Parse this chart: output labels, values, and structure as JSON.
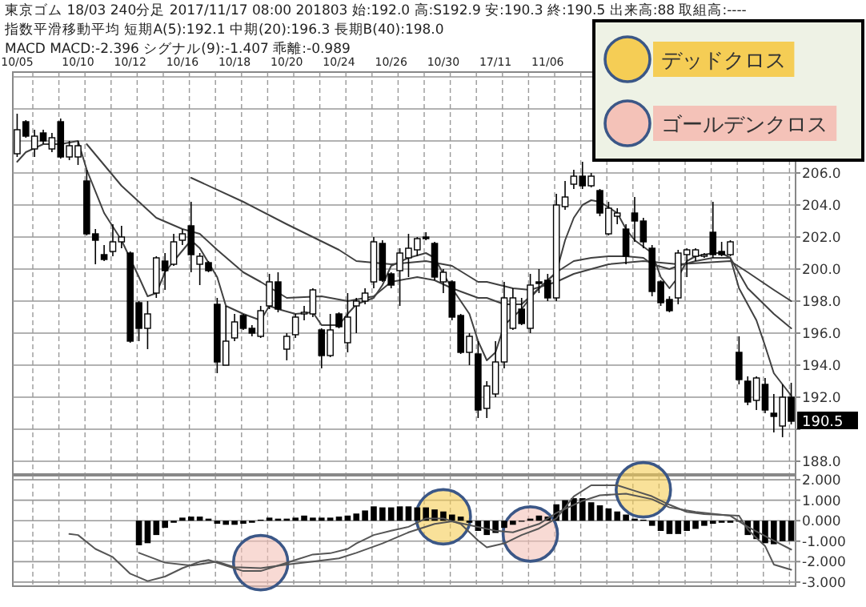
{
  "chart_data": [
    {
      "type": "candlestick",
      "title": "東京ゴム 18/03 240分足 2017/11/17 08:00 201803 始:192.0 高:S192.9 安:190.3 終:190.5 出来高:88 取組高:----",
      "subtitle": "指数平滑移動平均 短期A(5):192.1 中期(20):196.3 長期B(40):198.0",
      "categories": [
        "10/05",
        null,
        null,
        null,
        null,
        null,
        null,
        "10/10",
        null,
        null,
        null,
        null,
        null,
        "10/12",
        null,
        null,
        null,
        null,
        null,
        "10/16",
        null,
        null,
        null,
        null,
        null,
        "10/18",
        null,
        null,
        null,
        null,
        null,
        "10/20",
        null,
        null,
        null,
        null,
        null,
        "10/24",
        null,
        null,
        null,
        null,
        null,
        "10/26",
        null,
        null,
        null,
        null,
        null,
        "10/30",
        null,
        null,
        null,
        null,
        null,
        "17/11",
        null,
        null,
        null,
        null,
        null,
        "11/06",
        null,
        null,
        null,
        null,
        null,
        null,
        null,
        null,
        null,
        null,
        null,
        null,
        null,
        null,
        null,
        null,
        null,
        null,
        null,
        null,
        null,
        null,
        null,
        null,
        null,
        null,
        null,
        null
      ],
      "ohlc": [
        [
          207.2,
          209.7,
          207.0,
          208.7
        ],
        [
          209.2,
          209.3,
          208.2,
          208.3
        ],
        [
          207.5,
          208.7,
          207.0,
          208.3
        ],
        [
          208.5,
          208.7,
          207.8,
          208.0
        ],
        [
          207.5,
          208.5,
          207.3,
          208.2
        ],
        [
          209.2,
          209.4,
          206.9,
          207.0
        ],
        [
          207.0,
          208.0,
          206.8,
          207.7
        ],
        [
          207.0,
          208.0,
          206.5,
          207.7
        ],
        [
          205.5,
          206.2,
          202.1,
          202.2
        ],
        [
          202.2,
          202.5,
          200.3,
          201.8
        ],
        [
          200.9,
          201.5,
          200.5,
          200.6
        ],
        [
          201.1,
          202.8,
          200.8,
          201.7
        ],
        [
          201.7,
          202.7,
          201.3,
          202.0
        ],
        [
          201.0,
          201.1,
          195.4,
          195.5
        ],
        [
          197.9,
          198.0,
          195.5,
          196.3
        ],
        [
          196.3,
          198.0,
          195.0,
          197.2
        ],
        [
          198.5,
          200.8,
          198.2,
          200.7
        ],
        [
          200.5,
          201.0,
          198.7,
          199.9
        ],
        [
          200.3,
          202.2,
          200.2,
          201.7
        ],
        [
          201.8,
          202.5,
          201.5,
          202.2
        ],
        [
          202.7,
          204.2,
          199.8,
          200.9
        ],
        [
          200.3,
          201.0,
          199.0,
          200.8
        ],
        [
          200.4,
          200.5,
          199.8,
          199.9
        ],
        [
          197.8,
          198.2,
          193.5,
          194.2
        ],
        [
          194.0,
          197.7,
          194.0,
          195.5
        ],
        [
          195.7,
          197.2,
          195.5,
          196.7
        ],
        [
          197.1,
          197.2,
          196.2,
          196.3
        ],
        [
          196.3,
          196.5,
          195.8,
          196.0
        ],
        [
          195.8,
          197.7,
          195.7,
          197.4
        ],
        [
          197.7,
          199.7,
          197.5,
          199.2
        ],
        [
          199.2,
          199.8,
          197.3,
          197.5
        ],
        [
          195.0,
          196.0,
          194.3,
          195.8
        ],
        [
          195.9,
          197.2,
          195.7,
          197.0
        ],
        [
          197.2,
          197.7,
          196.8,
          197.3
        ],
        [
          197.2,
          198.8,
          197.0,
          198.7
        ],
        [
          196.2,
          196.3,
          193.8,
          194.6
        ],
        [
          194.6,
          197.2,
          194.5,
          196.2
        ],
        [
          197.2,
          197.3,
          196.3,
          196.4
        ],
        [
          195.4,
          198.5,
          194.8,
          197.0
        ],
        [
          197.7,
          198.2,
          196.0,
          198.0
        ],
        [
          198.0,
          198.8,
          197.8,
          198.5
        ],
        [
          199.2,
          202.0,
          198.8,
          201.7
        ],
        [
          201.6,
          201.8,
          199.2,
          199.3
        ],
        [
          199.7,
          199.8,
          198.8,
          199.0
        ],
        [
          199.9,
          201.3,
          197.7,
          201.0
        ],
        [
          200.7,
          202.2,
          199.5,
          201.3
        ],
        [
          201.2,
          202.0,
          200.8,
          201.9
        ],
        [
          202.0,
          202.3,
          201.8,
          201.9
        ],
        [
          201.6,
          201.7,
          199.3,
          199.5
        ],
        [
          199.2,
          200.0,
          198.5,
          199.8
        ],
        [
          199.2,
          199.3,
          196.8,
          197.0
        ],
        [
          197.1,
          197.2,
          194.7,
          194.8
        ],
        [
          194.8,
          196.0,
          194.0,
          195.8
        ],
        [
          194.7,
          195.5,
          190.7,
          191.2
        ],
        [
          191.3,
          193.0,
          190.7,
          192.7
        ],
        [
          192.2,
          195.5,
          192.0,
          194.2
        ],
        [
          194.2,
          199.2,
          193.8,
          198.2
        ],
        [
          196.3,
          198.8,
          196.2,
          198.2
        ],
        [
          197.5,
          198.2,
          196.5,
          196.6
        ],
        [
          196.3,
          199.7,
          196.0,
          199.0
        ],
        [
          199.2,
          200.0,
          198.5,
          199.1
        ],
        [
          199.3,
          199.7,
          198.0,
          198.2
        ],
        [
          198.2,
          204.7,
          198.0,
          204.0
        ],
        [
          203.9,
          205.5,
          203.7,
          204.5
        ],
        [
          205.3,
          206.2,
          205.0,
          205.8
        ],
        [
          205.8,
          206.7,
          205.0,
          205.2
        ],
        [
          205.2,
          206.0,
          205.1,
          205.8
        ],
        [
          204.9,
          205.0,
          203.3,
          203.5
        ],
        [
          202.2,
          204.2,
          202.1,
          203.8
        ],
        [
          203.3,
          203.8,
          202.8,
          203.5
        ],
        [
          202.5,
          202.8,
          200.3,
          200.8
        ],
        [
          203.5,
          204.5,
          201.7,
          203.0
        ],
        [
          203.0,
          203.2,
          201.3,
          201.7
        ],
        [
          201.3,
          201.5,
          198.3,
          198.6
        ],
        [
          199.2,
          199.3,
          197.7,
          197.9
        ],
        [
          198.1,
          198.3,
          197.3,
          197.4
        ],
        [
          198.2,
          201.2,
          197.8,
          201.0
        ],
        [
          200.9,
          201.3,
          199.5,
          201.2
        ],
        [
          200.8,
          201.3,
          200.5,
          201.2
        ],
        [
          200.8,
          201.0,
          200.7,
          200.9
        ],
        [
          202.3,
          204.2,
          200.7,
          200.9
        ],
        [
          201.1,
          201.7,
          200.8,
          200.9
        ],
        [
          200.9,
          201.8,
          200.8,
          201.7
        ],
        [
          194.8,
          195.8,
          192.8,
          193.1
        ],
        [
          193.0,
          193.3,
          191.5,
          191.7
        ],
        [
          191.8,
          193.3,
          191.2,
          193.2
        ],
        [
          192.8,
          193.2,
          191.0,
          191.2
        ],
        [
          191.0,
          192.2,
          189.8,
          190.8
        ],
        [
          190.2,
          192.8,
          189.5,
          192.0
        ],
        [
          192.0,
          192.9,
          190.3,
          190.5
        ]
      ],
      "series": [
        {
          "type": "line",
          "color": "#404040",
          "values": [
            206.7,
            207.3,
            null,
            207.8,
            null,
            207.8,
            null,
            208.0,
            206.2,
            null,
            203.5,
            null,
            201.8,
            null,
            199.5,
            198.3,
            198.5,
            199.8,
            200.5,
            null,
            201.8,
            201.3,
            null,
            199.5,
            197.7,
            null,
            197.2,
            null,
            196.8,
            197.7,
            197.5,
            null,
            197.2,
            null,
            197.3,
            196.5,
            null,
            196.5,
            197.2,
            197.8,
            null,
            198.2,
            199.0,
            200.2,
            null,
            200.7,
            null,
            201.0,
            200.7,
            199.7,
            198.8,
            null,
            197.2,
            195.5,
            194.3,
            194.8,
            196.5,
            null,
            197.5,
            198.2,
            198.8,
            null,
            199.8,
            201.8,
            203.2,
            204.0,
            204.3,
            204.2,
            null,
            203.5,
            202.5,
            201.8,
            null,
            201.0,
            199.5,
            198.8,
            199.5,
            200.5,
            200.8,
            null,
            201.0,
            201.0,
            200.7,
            198.8,
            null,
            196.8,
            195.2,
            193.5,
            null,
            192.1
          ]
        },
        {
          "type": "line",
          "color": "#404040",
          "values": [
            null,
            null,
            null,
            null,
            null,
            null,
            null,
            null,
            207.8,
            null,
            null,
            null,
            205.2,
            null,
            null,
            null,
            203.2,
            null,
            null,
            202.5,
            null,
            202.2,
            null,
            201.2,
            null,
            null,
            199.8,
            null,
            199.2,
            null,
            null,
            198.2,
            null,
            null,
            null,
            198.3,
            null,
            null,
            198.0,
            null,
            null,
            198.3,
            null,
            199.2,
            null,
            null,
            199.5,
            null,
            199.3,
            null,
            198.8,
            null,
            null,
            198.2,
            198.2,
            null,
            197.8,
            null,
            197.8,
            null,
            198.8,
            null,
            199.8,
            null,
            200.5,
            null,
            200.7,
            null,
            200.8,
            null,
            200.8,
            null,
            200.7,
            200.3,
            null,
            200.0,
            200.2,
            null,
            200.5,
            null,
            200.7,
            null,
            200.7,
            null,
            198.8,
            null,
            null,
            197.2,
            null,
            196.3
          ]
        },
        {
          "type": "line",
          "color": "#404040",
          "values": [
            null,
            null,
            null,
            null,
            null,
            null,
            null,
            null,
            null,
            null,
            null,
            null,
            null,
            null,
            null,
            null,
            null,
            null,
            null,
            null,
            205.7,
            null,
            null,
            null,
            null,
            null,
            204.2,
            null,
            null,
            null,
            null,
            202.8,
            null,
            null,
            null,
            null,
            null,
            201.2,
            null,
            200.5,
            null,
            null,
            null,
            200.3,
            null,
            null,
            null,
            200.5,
            null,
            null,
            200.2,
            null,
            null,
            199.2,
            199.2,
            null,
            null,
            198.8,
            null,
            198.7,
            null,
            null,
            199.2,
            null,
            199.7,
            null,
            200.0,
            null,
            200.3,
            null,
            null,
            null,
            200.5,
            null,
            null,
            null,
            200.3,
            null,
            null,
            null,
            null,
            null,
            200.5,
            null,
            199.8,
            null,
            null,
            198.7,
            null,
            198.0
          ]
        }
      ],
      "ylim": [
        187.2,
        212.3
      ],
      "yticks": [
        {
          "value": 188,
          "label": "188.0"
        },
        {
          "value": 190,
          "label": null
        },
        {
          "value": 192,
          "label": "192.0"
        },
        {
          "value": 194,
          "label": "194.0"
        },
        {
          "value": 196,
          "label": "196.0"
        },
        {
          "value": 198,
          "label": "198.0"
        },
        {
          "value": 200,
          "label": "200.0"
        },
        {
          "value": 202,
          "label": "202.0"
        },
        {
          "value": 204,
          "label": "204.0"
        },
        {
          "value": 206,
          "label": "206.0"
        },
        {
          "value": 208,
          "label": null
        },
        {
          "value": 210,
          "label": null
        },
        {
          "value": 212,
          "label": null
        }
      ],
      "grid": true,
      "annotations": [
        "MACD MACD:-2.396 シグナル(9):-1.407 乖離:-0.989",
        "190.5"
      ]
    },
    {
      "type": "bar",
      "categories": [
        null,
        null,
        null,
        null,
        null,
        null,
        null,
        null,
        null,
        null,
        null,
        null,
        null,
        null,
        null,
        null,
        null,
        null,
        null,
        null,
        null,
        null,
        null,
        null,
        null,
        null,
        null,
        null,
        null,
        null,
        null,
        null,
        null,
        null,
        null,
        null,
        null,
        null,
        null,
        null,
        null,
        null,
        null,
        null,
        null,
        null,
        null,
        null,
        null,
        null,
        null,
        null,
        null,
        null,
        null,
        null,
        null,
        null,
        null,
        null,
        null,
        null,
        null,
        null,
        null,
        null,
        null,
        null,
        null,
        null,
        null,
        null,
        null,
        null,
        null,
        null,
        null,
        null,
        null,
        null,
        null,
        null,
        null,
        null,
        null,
        null,
        null,
        null,
        null,
        null
      ],
      "series": [
        {
          "type": "bar",
          "color": "#000000",
          "values": [
            null,
            null,
            null,
            null,
            null,
            null,
            null,
            null,
            null,
            null,
            null,
            null,
            null,
            null,
            -1.2,
            -1.1,
            -0.7,
            -0.35,
            -0.1,
            0.15,
            0.2,
            0.2,
            0.1,
            -0.15,
            -0.2,
            -0.2,
            -0.15,
            -0.1,
            0.05,
            0.15,
            0.1,
            0.1,
            0.15,
            0.25,
            0.15,
            0.15,
            0.15,
            0.2,
            0.25,
            0.35,
            0.5,
            0.7,
            0.65,
            0.65,
            0.7,
            0.7,
            0.65,
            0.65,
            0.55,
            0.45,
            0.3,
            0.2,
            -0.1,
            -0.5,
            -0.7,
            -0.6,
            -0.35,
            -0.2,
            -0.05,
            0.1,
            0.25,
            0.2,
            0.8,
            1.0,
            1.1,
            1.1,
            0.9,
            0.75,
            0.6,
            0.45,
            0.3,
            0.1,
            0.05,
            -0.25,
            -0.5,
            -0.65,
            -0.65,
            -0.5,
            -0.4,
            -0.25,
            -0.15,
            -0.1,
            -0.1,
            -0.05,
            -0.7,
            -0.9,
            -1.1,
            -1.15,
            -1.0,
            -0.99
          ]
        },
        {
          "type": "line",
          "color": "#555555",
          "values": [
            null,
            null,
            null,
            null,
            null,
            null,
            -0.65,
            -0.7,
            null,
            -1.38,
            null,
            -1.78,
            null,
            -2.59,
            null,
            -2.95,
            null,
            -2.73,
            null,
            -2.32,
            null,
            -2.0,
            -1.92,
            null,
            -2.19,
            null,
            -2.46,
            null,
            -2.46,
            null,
            -2.19,
            null,
            -1.92,
            null,
            -1.65,
            null,
            -1.59,
            null,
            -1.38,
            -1.11,
            null,
            -0.7,
            null,
            -0.49,
            null,
            -0.3,
            null,
            0.11,
            null,
            0.11,
            null,
            -0.16,
            null,
            -0.97,
            -1.3,
            null,
            -1.11,
            null,
            -0.7,
            null,
            -0.38,
            null,
            0.11,
            null,
            1.19,
            null,
            1.73,
            null,
            null,
            1.73,
            null,
            1.46,
            null,
            1.19,
            null,
            0.78,
            null,
            0.43,
            null,
            0.32,
            null,
            null,
            null,
            0.24,
            -0.43,
            null,
            -1.24,
            -2.14,
            null,
            -2.4
          ]
        },
        {
          "type": "line",
          "color": "#555555",
          "values": [
            null,
            null,
            null,
            null,
            null,
            null,
            null,
            null,
            null,
            null,
            null,
            null,
            null,
            null,
            -1.57,
            null,
            null,
            -2.05,
            null,
            null,
            -2.19,
            null,
            null,
            -2.0,
            null,
            -2.27,
            null,
            null,
            -2.32,
            null,
            null,
            -2.14,
            null,
            null,
            -2.0,
            null,
            null,
            -1.84,
            null,
            -1.57,
            null,
            null,
            -1.11,
            null,
            null,
            -0.57,
            null,
            null,
            -0.16,
            null,
            -0.03,
            null,
            -0.22,
            null,
            null,
            -0.49,
            null,
            -0.57,
            null,
            null,
            -0.16,
            null,
            0.38,
            null,
            null,
            0.97,
            null,
            1.24,
            null,
            null,
            1.32,
            null,
            null,
            1.05,
            null,
            0.65,
            null,
            null,
            0.43,
            null,
            null,
            null,
            0.24,
            null,
            -0.3,
            null,
            null,
            -0.97,
            null,
            -1.41
          ]
        },
        {
          "type": "bubble",
          "name": "デッドクロス",
          "color": "#f5cd55",
          "values": [
            null,
            null,
            null,
            null,
            null,
            null,
            null,
            null,
            null,
            null,
            null,
            null,
            null,
            null,
            null,
            null,
            null,
            null,
            null,
            null,
            null,
            null,
            null,
            null,
            null,
            null,
            null,
            null,
            null,
            null,
            null,
            null,
            null,
            null,
            null,
            null,
            null,
            null,
            null,
            null,
            null,
            null,
            null,
            null,
            null,
            null,
            null,
            null,
            null,
            0.19,
            null,
            null,
            null,
            null,
            null,
            null,
            null,
            null,
            null,
            null,
            null,
            null,
            null,
            null,
            null,
            null,
            null,
            null,
            null,
            null,
            null,
            null,
            1.51,
            null,
            null,
            null,
            null,
            null,
            null,
            null,
            null,
            null,
            null,
            null,
            null,
            null,
            null,
            null,
            null,
            null
          ],
          "sizes": [
            null,
            null,
            null,
            null,
            null,
            null,
            null,
            null,
            null,
            null,
            null,
            null,
            null,
            null,
            null,
            null,
            null,
            null,
            null,
            null,
            null,
            null,
            null,
            null,
            null,
            null,
            null,
            null,
            null,
            null,
            null,
            null,
            null,
            null,
            null,
            null,
            null,
            null,
            null,
            null,
            null,
            null,
            null,
            null,
            null,
            null,
            null,
            null,
            null,
            1,
            null,
            null,
            null,
            null,
            null,
            null,
            null,
            null,
            null,
            null,
            null,
            null,
            null,
            null,
            null,
            null,
            null,
            null,
            null,
            null,
            null,
            null,
            1,
            null,
            null,
            null,
            null,
            null,
            null,
            null,
            null,
            null,
            null,
            null,
            null,
            null,
            null,
            null,
            null,
            null
          ]
        },
        {
          "type": "bubble",
          "name": "ゴールデンクロス",
          "color": "#f4c2b8",
          "values": [
            null,
            null,
            null,
            null,
            null,
            null,
            null,
            null,
            null,
            null,
            null,
            null,
            null,
            null,
            null,
            null,
            null,
            null,
            null,
            null,
            null,
            null,
            null,
            null,
            null,
            null,
            null,
            null,
            -2.05,
            null,
            null,
            null,
            null,
            null,
            null,
            null,
            null,
            null,
            null,
            null,
            null,
            null,
            null,
            null,
            null,
            null,
            null,
            null,
            null,
            null,
            null,
            null,
            null,
            null,
            null,
            null,
            null,
            null,
            null,
            -0.65,
            null,
            null,
            null,
            null,
            null,
            null,
            null,
            null,
            null,
            null,
            null,
            null,
            null,
            null,
            null,
            null,
            null,
            null,
            null,
            null,
            null,
            null,
            null,
            null,
            null,
            null,
            null,
            null,
            null,
            null
          ],
          "sizes": [
            null,
            null,
            null,
            null,
            null,
            null,
            null,
            null,
            null,
            null,
            null,
            null,
            null,
            null,
            null,
            null,
            null,
            null,
            null,
            null,
            null,
            null,
            null,
            null,
            null,
            null,
            null,
            null,
            1,
            null,
            null,
            null,
            null,
            null,
            null,
            null,
            null,
            null,
            null,
            null,
            null,
            null,
            null,
            null,
            null,
            null,
            null,
            null,
            null,
            null,
            null,
            null,
            null,
            null,
            null,
            null,
            null,
            null,
            null,
            1,
            null,
            null,
            null,
            null,
            null,
            null,
            null,
            null,
            null,
            null,
            null,
            null,
            null,
            null,
            null,
            null,
            null,
            null,
            null,
            null,
            null,
            null,
            null,
            null,
            null,
            null,
            null,
            null,
            null,
            null
          ]
        }
      ],
      "ylim": [
        -3.2,
        2.2
      ],
      "yticks": [
        {
          "value": -3,
          "label": "-3.000"
        },
        {
          "value": -2,
          "label": "-2.000"
        },
        {
          "value": -1,
          "label": "-1.000"
        },
        {
          "value": 0,
          "label": "0.000"
        },
        {
          "value": 1,
          "label": "1.000"
        },
        {
          "value": 2,
          "label": "2.000"
        }
      ],
      "grid": true,
      "legend": "top right",
      "tick_labels": "y"
    }
  ]
}
